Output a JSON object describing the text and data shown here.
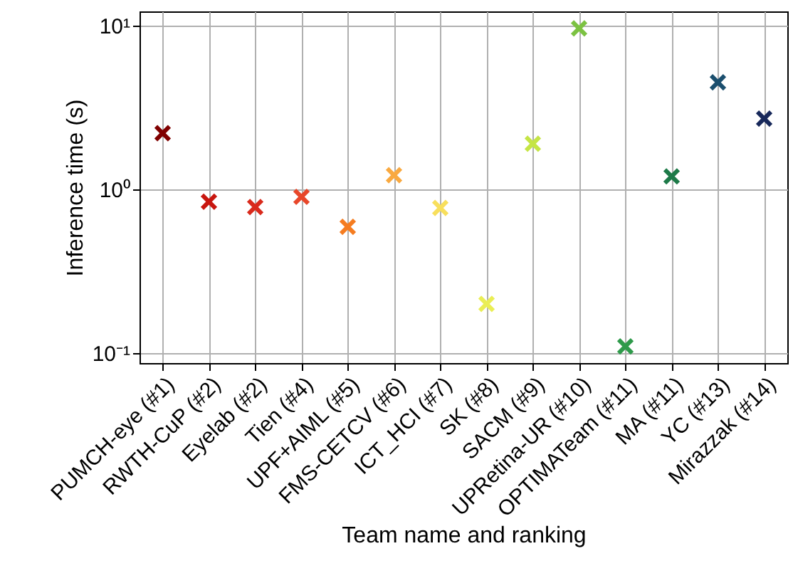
{
  "chart_data": {
    "type": "scatter",
    "xlabel": "Team name and ranking",
    "ylabel": "Inference time (s)",
    "categories": [
      "PUMCH-eye (#1)",
      "RWTH-CuP (#2)",
      "Eyelab (#2)",
      "Tien (#4)",
      "UPF+AIML (#5)",
      "FMS-CETCV (#6)",
      "ICT_HCI (#7)",
      "SK (#8)",
      "SACM (#9)",
      "UPRetina-UR (#10)",
      "OPTIMATeam (#11)",
      "MA (#11)",
      "YC (#13)",
      "Mirazzak (#14)"
    ],
    "values": [
      2.2,
      0.84,
      0.78,
      0.9,
      0.59,
      1.22,
      0.77,
      0.2,
      1.9,
      9.6,
      0.11,
      1.2,
      4.5,
      2.7
    ],
    "colors": [
      "#800000",
      "#c8160f",
      "#d92a1c",
      "#e8472a",
      "#f57c20",
      "#f9a940",
      "#f8df5c",
      "#eaee55",
      "#c5e545",
      "#7cc242",
      "#2e9a4a",
      "#1d7a48",
      "#1b4f6e",
      "#17285a"
    ],
    "log": true,
    "marker": "cross",
    "grid": true,
    "ylim": [
      0.087,
      12.2
    ],
    "yticks": [
      {
        "value": 0.1,
        "label": "10⁻¹"
      },
      {
        "value": 1,
        "label": "10⁰"
      },
      {
        "value": 10,
        "label": "10¹"
      }
    ]
  }
}
